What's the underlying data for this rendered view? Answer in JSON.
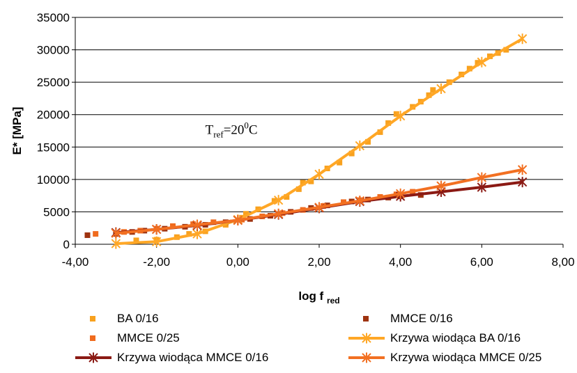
{
  "chart_data": {
    "type": "scatter",
    "xlabel": "log f",
    "xlabel_sub": "red",
    "ylabel": "E* [MPa]",
    "xlim": [
      -4,
      8
    ],
    "ylim": [
      0,
      35000
    ],
    "x_ticks": [
      -4,
      -2,
      0,
      2,
      4,
      6,
      8
    ],
    "x_tick_labels": [
      "-4,00",
      "-2,00",
      "0,00",
      "2,00",
      "4,00",
      "6,00",
      "8,00"
    ],
    "y_ticks": [
      0,
      5000,
      10000,
      15000,
      20000,
      25000,
      30000,
      35000
    ],
    "y_tick_labels": [
      "0",
      "5000",
      "10000",
      "15000",
      "20000",
      "25000",
      "30000",
      "35000"
    ],
    "grid": "horizontal",
    "legend_position": "bottom",
    "annotation": {
      "T": "T",
      "sub": "ref",
      "eq": "=20",
      "sup": "0",
      "unit": "C",
      "x": -0.8,
      "y": 17000
    },
    "series": [
      {
        "name": "BA 0/16",
        "kind": "markers",
        "marker": "square",
        "color": "#F8A11E",
        "points": [
          [
            -2.5,
            600
          ],
          [
            -2.0,
            700
          ],
          [
            -1.5,
            1100
          ],
          [
            -1.2,
            1600
          ],
          [
            -0.8,
            2000
          ],
          [
            -0.3,
            3000
          ],
          [
            0.1,
            4100
          ],
          [
            0.2,
            4700
          ],
          [
            0.5,
            5400
          ],
          [
            0.9,
            6700
          ],
          [
            1.2,
            7300
          ],
          [
            1.5,
            8500
          ],
          [
            1.6,
            9500
          ],
          [
            1.8,
            9700
          ],
          [
            2.2,
            11700
          ],
          [
            2.5,
            12600
          ],
          [
            2.8,
            14000
          ],
          [
            3.2,
            15800
          ],
          [
            3.5,
            17300
          ],
          [
            3.7,
            18700
          ],
          [
            3.9,
            20100
          ],
          [
            4.3,
            21200
          ],
          [
            4.5,
            22000
          ],
          [
            4.7,
            23000
          ],
          [
            4.8,
            23800
          ],
          [
            5.2,
            25000
          ],
          [
            5.5,
            26200
          ],
          [
            5.7,
            27100
          ],
          [
            5.9,
            28000
          ],
          [
            6.2,
            29000
          ],
          [
            6.4,
            29500
          ],
          [
            6.6,
            30000
          ]
        ]
      },
      {
        "name": "MMCE 0/16",
        "kind": "markers",
        "marker": "square",
        "color": "#9E3310",
        "points": [
          [
            -3.7,
            1400
          ],
          [
            -3.0,
            1600
          ],
          [
            -2.6,
            1900
          ],
          [
            -2.3,
            2100
          ],
          [
            -1.8,
            2400
          ],
          [
            -1.3,
            2700
          ],
          [
            -0.8,
            3000
          ],
          [
            -0.3,
            3400
          ],
          [
            0.3,
            3900
          ],
          [
            0.8,
            4400
          ],
          [
            1.3,
            5000
          ],
          [
            1.8,
            5600
          ],
          [
            2.2,
            6000
          ],
          [
            2.8,
            6600
          ],
          [
            3.2,
            6900
          ],
          [
            3.7,
            7200
          ],
          [
            4.0,
            7400
          ],
          [
            4.5,
            7600
          ]
        ]
      },
      {
        "name": "MMCE 0/25",
        "kind": "markers",
        "marker": "square",
        "color": "#F06B1E",
        "points": [
          [
            -3.5,
            1600
          ],
          [
            -2.8,
            1900
          ],
          [
            -2.4,
            2100
          ],
          [
            -2.0,
            2400
          ],
          [
            -1.6,
            2800
          ],
          [
            -1.1,
            3100
          ],
          [
            -0.6,
            3400
          ],
          [
            0.1,
            3800
          ],
          [
            0.6,
            4300
          ],
          [
            1.1,
            4800
          ],
          [
            1.6,
            5300
          ],
          [
            2.1,
            5900
          ],
          [
            2.6,
            6500
          ],
          [
            3.0,
            6800
          ],
          [
            3.5,
            7300
          ],
          [
            3.9,
            7700
          ],
          [
            4.3,
            8100
          ]
        ]
      },
      {
        "name": "Krzywa wiodąca BA 0/16",
        "kind": "line",
        "marker": "star",
        "color": "#FFA726",
        "points": [
          [
            -3.0,
            100
          ],
          [
            -2.0,
            400
          ],
          [
            -1.0,
            1600
          ],
          [
            0.0,
            3800
          ],
          [
            1.0,
            6800
          ],
          [
            2.0,
            10800
          ],
          [
            3.0,
            15200
          ],
          [
            4.0,
            19800
          ],
          [
            5.0,
            24000
          ],
          [
            6.0,
            28100
          ],
          [
            7.0,
            31700
          ]
        ]
      },
      {
        "name": "Krzywa wiodąca MMCE 0/16",
        "kind": "line",
        "marker": "star",
        "color": "#8B1A14",
        "points": [
          [
            -3.0,
            1800
          ],
          [
            -2.0,
            2300
          ],
          [
            -1.0,
            2900
          ],
          [
            0.0,
            3700
          ],
          [
            1.0,
            4600
          ],
          [
            2.0,
            5600
          ],
          [
            3.0,
            6600
          ],
          [
            4.0,
            7400
          ],
          [
            5.0,
            8100
          ],
          [
            6.0,
            8800
          ],
          [
            7.0,
            9600
          ]
        ]
      },
      {
        "name": "Krzywa wiodąca MMCE 0/25",
        "kind": "line",
        "marker": "star",
        "color": "#F27022",
        "points": [
          [
            -3.0,
            1700
          ],
          [
            -2.0,
            2300
          ],
          [
            -1.0,
            3000
          ],
          [
            0.0,
            3700
          ],
          [
            1.0,
            4700
          ],
          [
            2.0,
            5700
          ],
          [
            3.0,
            6700
          ],
          [
            4.0,
            7800
          ],
          [
            5.0,
            9000
          ],
          [
            6.0,
            10300
          ],
          [
            7.0,
            11500
          ]
        ]
      }
    ]
  }
}
